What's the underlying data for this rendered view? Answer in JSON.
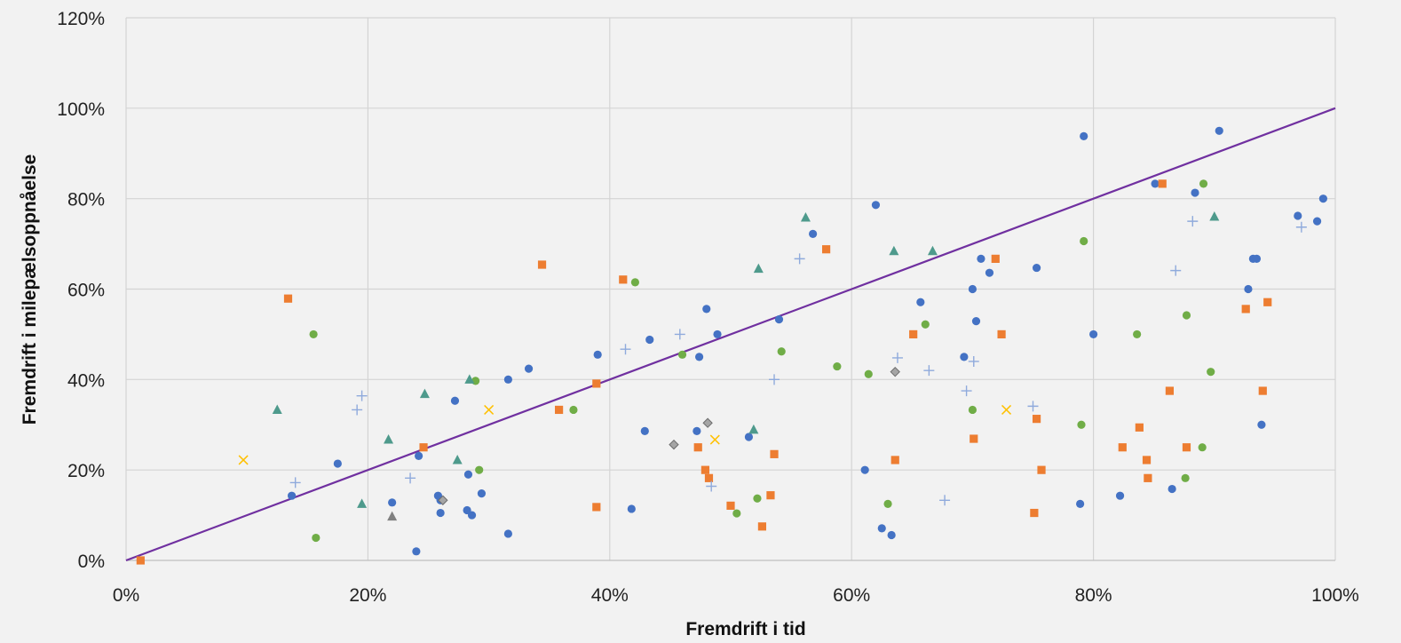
{
  "chart_data": {
    "type": "scatter",
    "xlabel": "Fremdrift i tid",
    "ylabel": "Fremdrift i  milepælsoppnåelse",
    "xlim": [
      0,
      1.0
    ],
    "ylim": [
      0,
      1.2
    ],
    "xticks": [
      0,
      0.2,
      0.4,
      0.6,
      0.8,
      1.0
    ],
    "xtick_labels": [
      "0%",
      "20%",
      "40%",
      "60%",
      "80%",
      "100%"
    ],
    "yticks": [
      0,
      0.2,
      0.4,
      0.6,
      0.8,
      1.0,
      1.2
    ],
    "ytick_labels": [
      "0%",
      "20%",
      "40%",
      "60%",
      "80%",
      "100%",
      "120%"
    ],
    "grid": true,
    "legend": "none",
    "series": [
      {
        "marker": "circle",
        "color": "#4472c4",
        "points": [
          [
            0.137,
            0.143
          ],
          [
            0.175,
            0.214
          ],
          [
            0.22,
            0.128
          ],
          [
            0.24,
            0.02
          ],
          [
            0.242,
            0.231
          ],
          [
            0.258,
            0.143
          ],
          [
            0.26,
            0.133
          ],
          [
            0.26,
            0.105
          ],
          [
            0.272,
            0.353
          ],
          [
            0.282,
            0.111
          ],
          [
            0.283,
            0.19
          ],
          [
            0.286,
            0.1
          ],
          [
            0.294,
            0.148
          ],
          [
            0.316,
            0.4
          ],
          [
            0.316,
            0.059
          ],
          [
            0.333,
            0.424
          ],
          [
            0.39,
            0.455
          ],
          [
            0.418,
            0.114
          ],
          [
            0.429,
            0.286
          ],
          [
            0.433,
            0.488
          ],
          [
            0.472,
            0.286
          ],
          [
            0.474,
            0.45
          ],
          [
            0.48,
            0.556
          ],
          [
            0.489,
            0.5
          ],
          [
            0.515,
            0.273
          ],
          [
            0.54,
            0.533
          ],
          [
            0.568,
            0.722
          ],
          [
            0.611,
            0.2
          ],
          [
            0.62,
            0.786
          ],
          [
            0.625,
            0.071
          ],
          [
            0.633,
            0.056
          ],
          [
            0.657,
            0.571
          ],
          [
            0.693,
            0.45
          ],
          [
            0.7,
            0.6
          ],
          [
            0.703,
            0.529
          ],
          [
            0.707,
            0.667
          ],
          [
            0.714,
            0.636
          ],
          [
            0.753,
            0.647
          ],
          [
            0.789,
            0.125
          ],
          [
            0.792,
            0.938
          ],
          [
            0.8,
            0.5
          ],
          [
            0.822,
            0.143
          ],
          [
            0.851,
            0.833
          ],
          [
            0.865,
            0.158
          ],
          [
            0.884,
            0.813
          ],
          [
            0.904,
            0.95
          ],
          [
            0.928,
            0.6
          ],
          [
            0.932,
            0.667
          ],
          [
            0.935,
            0.667
          ],
          [
            0.939,
            0.3
          ],
          [
            0.969,
            0.762
          ],
          [
            0.985,
            0.75
          ],
          [
            0.99,
            0.8
          ]
        ]
      },
      {
        "marker": "square",
        "color": "#ed7d31",
        "points": [
          [
            0.012,
            0.0
          ],
          [
            0.134,
            0.579
          ],
          [
            0.246,
            0.25
          ],
          [
            0.344,
            0.654
          ],
          [
            0.358,
            0.333
          ],
          [
            0.389,
            0.391
          ],
          [
            0.389,
            0.118
          ],
          [
            0.411,
            0.621
          ],
          [
            0.473,
            0.25
          ],
          [
            0.479,
            0.2
          ],
          [
            0.482,
            0.182
          ],
          [
            0.5,
            0.121
          ],
          [
            0.526,
            0.075
          ],
          [
            0.533,
            0.144
          ],
          [
            0.536,
            0.235
          ],
          [
            0.579,
            0.688
          ],
          [
            0.636,
            0.222
          ],
          [
            0.651,
            0.5
          ],
          [
            0.701,
            0.269
          ],
          [
            0.719,
            0.667
          ],
          [
            0.724,
            0.5
          ],
          [
            0.751,
            0.105
          ],
          [
            0.753,
            0.313
          ],
          [
            0.757,
            0.2
          ],
          [
            0.824,
            0.25
          ],
          [
            0.838,
            0.294
          ],
          [
            0.844,
            0.222
          ],
          [
            0.845,
            0.182
          ],
          [
            0.857,
            0.833
          ],
          [
            0.863,
            0.375
          ],
          [
            0.877,
            0.25
          ],
          [
            0.926,
            0.556
          ],
          [
            0.94,
            0.375
          ],
          [
            0.944,
            0.571
          ]
        ]
      },
      {
        "marker": "circle",
        "color": "#70ad47",
        "points": [
          [
            0.155,
            0.5
          ],
          [
            0.157,
            0.05
          ],
          [
            0.289,
            0.397
          ],
          [
            0.292,
            0.2
          ],
          [
            0.37,
            0.333
          ],
          [
            0.421,
            0.615
          ],
          [
            0.46,
            0.455
          ],
          [
            0.505,
            0.104
          ],
          [
            0.522,
            0.137
          ],
          [
            0.542,
            0.462
          ],
          [
            0.588,
            0.429
          ],
          [
            0.614,
            0.412
          ],
          [
            0.63,
            0.125
          ],
          [
            0.661,
            0.522
          ],
          [
            0.7,
            0.333
          ],
          [
            0.79,
            0.3
          ],
          [
            0.792,
            0.706
          ],
          [
            0.836,
            0.5
          ],
          [
            0.876,
            0.182
          ],
          [
            0.877,
            0.542
          ],
          [
            0.89,
            0.25
          ],
          [
            0.891,
            0.833
          ],
          [
            0.897,
            0.417
          ]
        ]
      },
      {
        "marker": "triangle",
        "color": "#4e9a8c",
        "points": [
          [
            0.125,
            0.333
          ],
          [
            0.195,
            0.125
          ],
          [
            0.217,
            0.267
          ],
          [
            0.247,
            0.368
          ],
          [
            0.274,
            0.222
          ],
          [
            0.284,
            0.4
          ],
          [
            0.519,
            0.289
          ],
          [
            0.523,
            0.645
          ],
          [
            0.562,
            0.758
          ],
          [
            0.635,
            0.684
          ],
          [
            0.667,
            0.684
          ],
          [
            0.9,
            0.76
          ]
        ]
      },
      {
        "marker": "triangle",
        "color": "#808080",
        "points": [
          [
            0.22,
            0.097
          ]
        ]
      },
      {
        "marker": "diamond",
        "color": "#a5a5a5",
        "points": [
          [
            0.262,
            0.133
          ],
          [
            0.453,
            0.256
          ],
          [
            0.481,
            0.304
          ],
          [
            0.636,
            0.417
          ]
        ]
      },
      {
        "marker": "plus",
        "color": "#8faadc",
        "points": [
          [
            0.14,
            0.172
          ],
          [
            0.191,
            0.333
          ],
          [
            0.195,
            0.364
          ],
          [
            0.235,
            0.182
          ],
          [
            0.413,
            0.467
          ],
          [
            0.458,
            0.5
          ],
          [
            0.484,
            0.164
          ],
          [
            0.536,
            0.4
          ],
          [
            0.557,
            0.667
          ],
          [
            0.638,
            0.448
          ],
          [
            0.664,
            0.42
          ],
          [
            0.677,
            0.133
          ],
          [
            0.695,
            0.375
          ],
          [
            0.701,
            0.44
          ],
          [
            0.75,
            0.341
          ],
          [
            0.882,
            0.75
          ],
          [
            0.868,
            0.641
          ],
          [
            0.972,
            0.737
          ]
        ]
      },
      {
        "marker": "x",
        "color": "#ffc000",
        "points": [
          [
            0.097,
            0.222
          ],
          [
            0.3,
            0.333
          ],
          [
            0.487,
            0.267
          ],
          [
            0.728,
            0.333
          ]
        ]
      }
    ],
    "reference_line": {
      "from": [
        0,
        0
      ],
      "to": [
        1.0,
        1.0
      ],
      "color": "#7030a0"
    }
  }
}
